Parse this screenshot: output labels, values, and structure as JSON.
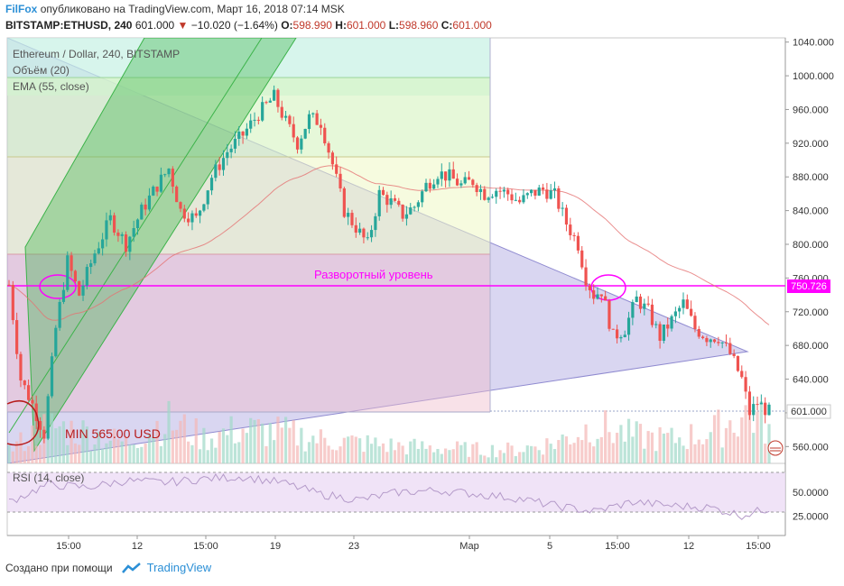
{
  "header": {
    "brand": "FilFox",
    "published": "опубликовано на TradingView.com, Март 16, 2018 07:14 MSK",
    "symbol": "BITSTAMP:ETHUSD, 240",
    "price": "601.000",
    "change": "−10.020 (−1.64%)",
    "o_label": "O:",
    "o_value": "598.990",
    "h_label": "H:",
    "h_value": "601.000",
    "l_label": "L:",
    "l_value": "598.960",
    "c_label": "C:",
    "c_value": "601.000"
  },
  "legend": {
    "main": "Ethereum / Dollar, 240, BITSTAMP",
    "volume": "Объём (20)",
    "ema": "EMA (55, close)",
    "rsi": "RSI (14, close)"
  },
  "annotations": {
    "reversal_level_text": "Разворотный уровень",
    "reversal_level_value": 750.726,
    "reversal_level_label": "750.726",
    "min_text": "MIN 565.00 USD",
    "last_price_label": "601.000",
    "last_price": 601.0
  },
  "footer": {
    "created_with": "Создано при помощи",
    "tradingview": "TradingView"
  },
  "colors": {
    "up": "#26a69a",
    "down": "#ef5350",
    "reversal": "#ff00ff",
    "min_circle": "#b71c1c",
    "axis_text": "#333333"
  },
  "chart_data": {
    "type": "candlestick",
    "symbol": "BITSTAMP:ETHUSD",
    "timeframe": "240",
    "y_range": [
      540,
      1045
    ],
    "y_ticks": [
      560,
      600,
      640,
      680,
      720,
      760,
      800,
      840,
      880,
      920,
      960,
      1000,
      1040
    ],
    "y_tick_labels": [
      "560.000",
      "600.000",
      "640.000",
      "680.000",
      "720.000",
      "760.000",
      "800.000",
      "840.000",
      "880.000",
      "920.000",
      "960.000",
      "1000.000",
      "1040.000"
    ],
    "x_tick_labels": [
      "15:00",
      "12",
      "15:00",
      "19",
      "23",
      "Мар",
      "5",
      "15:00",
      "12",
      "15:00"
    ],
    "rsi_levels": [
      25,
      50
    ],
    "rsi_tick_labels": [
      "50.0000",
      "25.0000"
    ],
    "rsi_range": [
      5,
      80
    ],
    "price_path": [
      [
        0,
        752
      ],
      [
        3,
        640
      ],
      [
        6,
        610
      ],
      [
        9,
        575
      ],
      [
        12,
        700
      ],
      [
        15,
        780
      ],
      [
        18,
        740
      ],
      [
        22,
        790
      ],
      [
        26,
        830
      ],
      [
        30,
        800
      ],
      [
        34,
        840
      ],
      [
        38,
        870
      ],
      [
        41,
        890
      ],
      [
        44,
        840
      ],
      [
        48,
        830
      ],
      [
        52,
        880
      ],
      [
        56,
        910
      ],
      [
        60,
        930
      ],
      [
        64,
        955
      ],
      [
        68,
        975
      ],
      [
        71,
        945
      ],
      [
        74,
        920
      ],
      [
        77,
        950
      ],
      [
        80,
        945
      ],
      [
        83,
        895
      ],
      [
        86,
        840
      ],
      [
        89,
        820
      ],
      [
        92,
        800
      ],
      [
        95,
        860
      ],
      [
        98,
        850
      ],
      [
        101,
        835
      ],
      [
        104,
        845
      ],
      [
        107,
        870
      ],
      [
        110,
        885
      ],
      [
        113,
        880
      ],
      [
        116,
        870
      ],
      [
        119,
        875
      ],
      [
        122,
        860
      ],
      [
        125,
        865
      ],
      [
        128,
        860
      ],
      [
        131,
        850
      ],
      [
        134,
        860
      ],
      [
        137,
        865
      ],
      [
        140,
        858
      ],
      [
        143,
        825
      ],
      [
        146,
        800
      ],
      [
        148,
        760
      ],
      [
        150,
        740
      ],
      [
        152,
        745
      ],
      [
        155,
        690
      ],
      [
        158,
        700
      ],
      [
        161,
        735
      ],
      [
        164,
        720
      ],
      [
        167,
        690
      ],
      [
        170,
        710
      ],
      [
        173,
        730
      ],
      [
        176,
        700
      ],
      [
        179,
        690
      ],
      [
        182,
        690
      ],
      [
        185,
        670
      ],
      [
        188,
        640
      ],
      [
        190,
        600
      ],
      [
        192,
        612
      ],
      [
        195,
        601
      ]
    ],
    "volume_profile": [
      [
        0,
        8
      ],
      [
        10,
        22
      ],
      [
        20,
        18
      ],
      [
        30,
        12
      ],
      [
        40,
        25
      ],
      [
        50,
        15
      ],
      [
        60,
        20
      ],
      [
        70,
        18
      ],
      [
        80,
        14
      ],
      [
        90,
        12
      ],
      [
        100,
        10
      ],
      [
        110,
        9
      ],
      [
        120,
        8
      ],
      [
        130,
        8
      ],
      [
        140,
        12
      ],
      [
        150,
        22
      ],
      [
        160,
        16
      ],
      [
        170,
        14
      ],
      [
        180,
        18
      ],
      [
        190,
        30
      ],
      [
        195,
        20
      ]
    ],
    "rsi_path": [
      [
        0,
        40
      ],
      [
        10,
        58
      ],
      [
        20,
        55
      ],
      [
        30,
        62
      ],
      [
        40,
        60
      ],
      [
        50,
        64
      ],
      [
        60,
        66
      ],
      [
        70,
        60
      ],
      [
        80,
        48
      ],
      [
        90,
        42
      ],
      [
        100,
        50
      ],
      [
        110,
        52
      ],
      [
        120,
        48
      ],
      [
        130,
        44
      ],
      [
        140,
        36
      ],
      [
        150,
        30
      ],
      [
        160,
        40
      ],
      [
        170,
        36
      ],
      [
        180,
        34
      ],
      [
        188,
        26
      ],
      [
        195,
        33
      ]
    ]
  }
}
